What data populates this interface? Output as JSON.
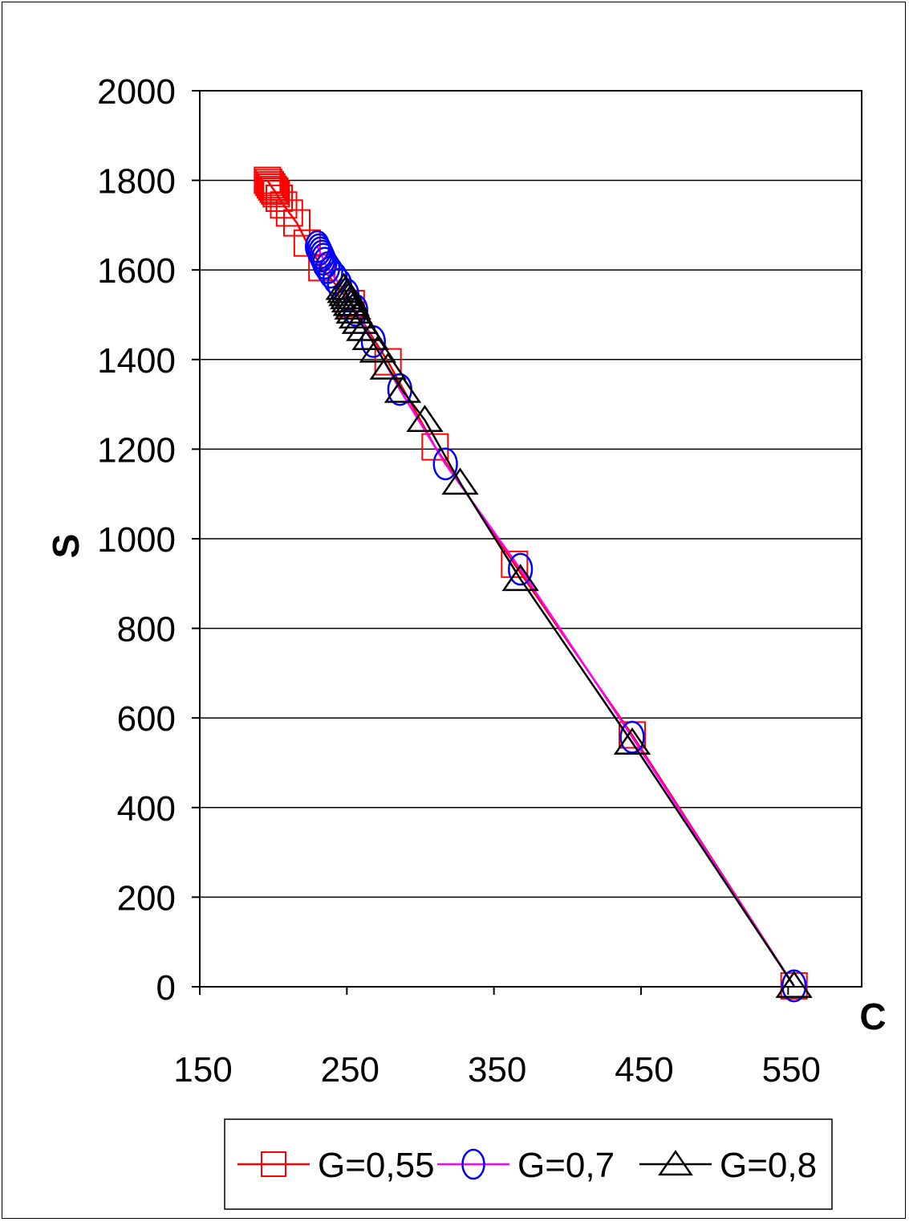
{
  "chart_data": {
    "type": "line",
    "xlabel": "C",
    "ylabel": "S",
    "xlim": [
      150,
      600
    ],
    "ylim": [
      0,
      2000
    ],
    "x_ticks": [
      150,
      250,
      350,
      450,
      550
    ],
    "y_ticks": [
      0,
      200,
      400,
      600,
      800,
      1000,
      1200,
      1400,
      1600,
      1800,
      2000
    ],
    "grid": "horizontal",
    "legend_position": "bottom",
    "series": [
      {
        "name": "G=0,55",
        "color": "#ff0000",
        "marker": "square",
        "x": [
          196,
          197,
          198,
          199,
          200,
          201,
          202,
          204,
          207,
          211,
          216,
          223,
          233,
          253,
          278,
          310,
          364,
          444,
          554
        ],
        "y": [
          1800,
          1795,
          1790,
          1785,
          1780,
          1776,
          1770,
          1760,
          1745,
          1727,
          1705,
          1660,
          1605,
          1525,
          1395,
          1205,
          943,
          562,
          2
        ]
      },
      {
        "name": "G=0,7",
        "color": "#0000ff",
        "line_color": "#ff00ff",
        "marker": "circle",
        "x": [
          230,
          231,
          232,
          233,
          234,
          235,
          237,
          239,
          242,
          245,
          250,
          256,
          268,
          286,
          317,
          368,
          444,
          554
        ],
        "y": [
          1652,
          1645,
          1638,
          1631,
          1624,
          1615,
          1605,
          1595,
          1582,
          1568,
          1545,
          1510,
          1440,
          1333,
          1167,
          932,
          557,
          2
        ]
      },
      {
        "name": "G=0,8",
        "color": "#000000",
        "marker": "triangle",
        "x": [
          248,
          249,
          250,
          251,
          252,
          253,
          254,
          255,
          257,
          259,
          262,
          266,
          271,
          278,
          288,
          303,
          327,
          368,
          444,
          554
        ],
        "y": [
          1560,
          1553,
          1546,
          1539,
          1532,
          1524,
          1516,
          1507,
          1496,
          1484,
          1468,
          1448,
          1420,
          1382,
          1330,
          1265,
          1125,
          910,
          545,
          2
        ]
      }
    ]
  }
}
